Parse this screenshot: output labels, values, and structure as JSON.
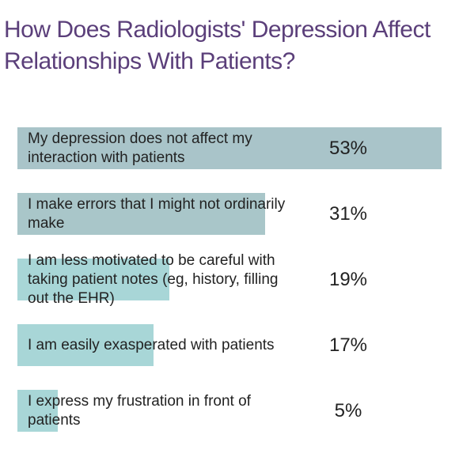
{
  "chart_data": {
    "type": "bar",
    "orientation": "horizontal",
    "title": "How Does Radiologists' Depression Affect Relationships With Patients?",
    "categories": [
      "My depression does not affect my interaction with patients",
      "I make errors that I might not ordinarily make",
      "I am less motivated to be careful with taking patient notes (eg, history, filling out the EHR)",
      "I am easily exasperated with patients",
      "I express my frustration in front of patients"
    ],
    "values": [
      53,
      31,
      19,
      17,
      5
    ],
    "value_labels": [
      "53%",
      "31%",
      "19%",
      "17%",
      "5%"
    ],
    "colors": [
      "#a9c4c9",
      "#a9c6c9",
      "#a8d6d7",
      "#a8d6d7",
      "#a8d6d7"
    ]
  }
}
